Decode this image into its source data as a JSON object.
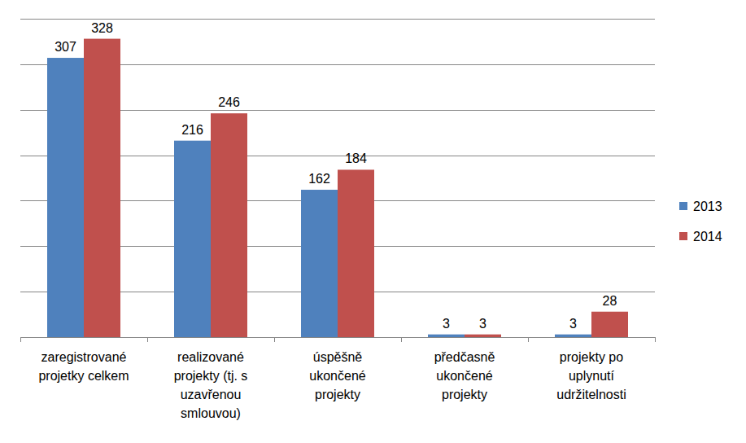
{
  "chart_data": {
    "type": "bar",
    "categories": [
      "zaregistrované\nprojetky celkem",
      "realizované\nprojekty (tj. s\nuzavřenou\nsmlouvou)",
      "úspěšně\nukončené\nprojekty",
      "předčasně\nukončené\nprojekty",
      "projekty po\nuplynutí\nudržitelnosti"
    ],
    "series": [
      {
        "name": "2013",
        "color": "#4f81bd",
        "values": [
          307,
          216,
          162,
          3,
          3
        ]
      },
      {
        "name": "2014",
        "color": "#c0504d",
        "values": [
          328,
          246,
          184,
          3,
          28
        ]
      }
    ],
    "ylim": [
      0,
      350
    ],
    "yticks": [
      0,
      50,
      100,
      150,
      200,
      250,
      300,
      350
    ],
    "grid": true,
    "legend": "right",
    "data_labels": true,
    "tick_labels": "x"
  }
}
